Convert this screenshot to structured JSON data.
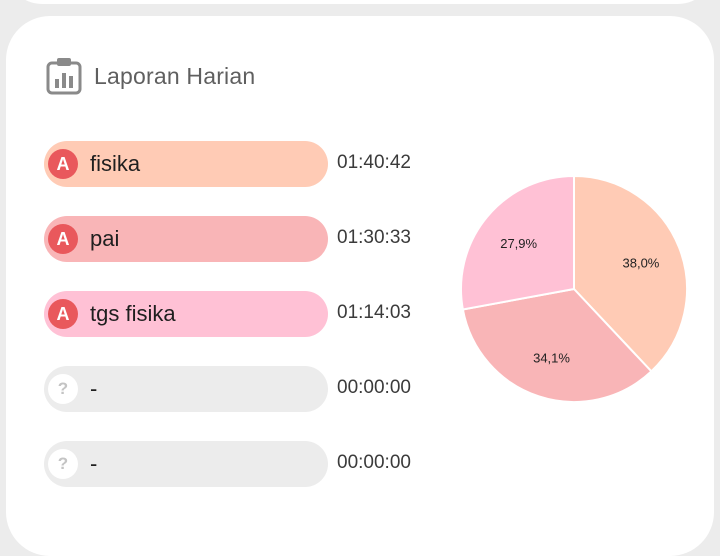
{
  "header": {
    "title": "Laporan Harian",
    "icon": "clipboard-chart-icon"
  },
  "activities": [
    {
      "badge": "A",
      "label": "fisika",
      "time": "01:40:42",
      "color": "#ffcbb5",
      "active": true
    },
    {
      "badge": "A",
      "label": "pai",
      "time": "01:30:33",
      "color": "#f9b5b7",
      "active": true
    },
    {
      "badge": "A",
      "label": "tgs fisika",
      "time": "01:14:03",
      "color": "#ffc1d5",
      "active": true
    },
    {
      "badge": "?",
      "label": "-",
      "time": "00:00:00",
      "color": "#ececec",
      "active": false
    },
    {
      "badge": "?",
      "label": "-",
      "time": "00:00:00",
      "color": "#ececec",
      "active": false
    }
  ],
  "colors": {
    "badge_active": "#e9585c",
    "empty_pill": "#ececec"
  },
  "chart_data": {
    "type": "pie",
    "slices": [
      {
        "name": "fisika",
        "value": 38.0,
        "label": "38,0%",
        "color": "#ffcbb5"
      },
      {
        "name": "pai",
        "value": 34.1,
        "label": "34,1%",
        "color": "#f9b5b7"
      },
      {
        "name": "tgs fisika",
        "value": 27.9,
        "label": "27,9%",
        "color": "#ffc1d5"
      }
    ],
    "start": "12 o'clock",
    "direction": "clockwise"
  }
}
